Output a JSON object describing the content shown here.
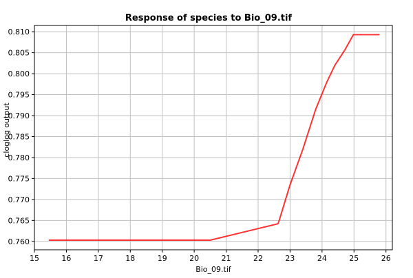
{
  "chart_data": {
    "type": "line",
    "title": "Response of species to Bio_09.tif",
    "xlabel": "Bio_09.tif",
    "ylabel": "cloglog output",
    "xlim": [
      15,
      26.2
    ],
    "ylim": [
      0.758,
      0.8115
    ],
    "x_ticks": [
      15,
      16,
      17,
      18,
      19,
      20,
      21,
      22,
      23,
      24,
      25,
      26
    ],
    "y_ticks": [
      0.76,
      0.765,
      0.77,
      0.775,
      0.78,
      0.785,
      0.79,
      0.795,
      0.8,
      0.805,
      0.81
    ],
    "grid": true,
    "line_color": "#ff0000",
    "series": [
      {
        "x": [
          15.45,
          20.5,
          22.62,
          22.66,
          23.0,
          23.4,
          23.8,
          24.15,
          24.4,
          24.7,
          24.98,
          25.8
        ],
        "y": [
          0.7603,
          0.7603,
          0.7642,
          0.765,
          0.7735,
          0.782,
          0.7915,
          0.798,
          0.802,
          0.8055,
          0.8093,
          0.8093
        ]
      }
    ]
  }
}
